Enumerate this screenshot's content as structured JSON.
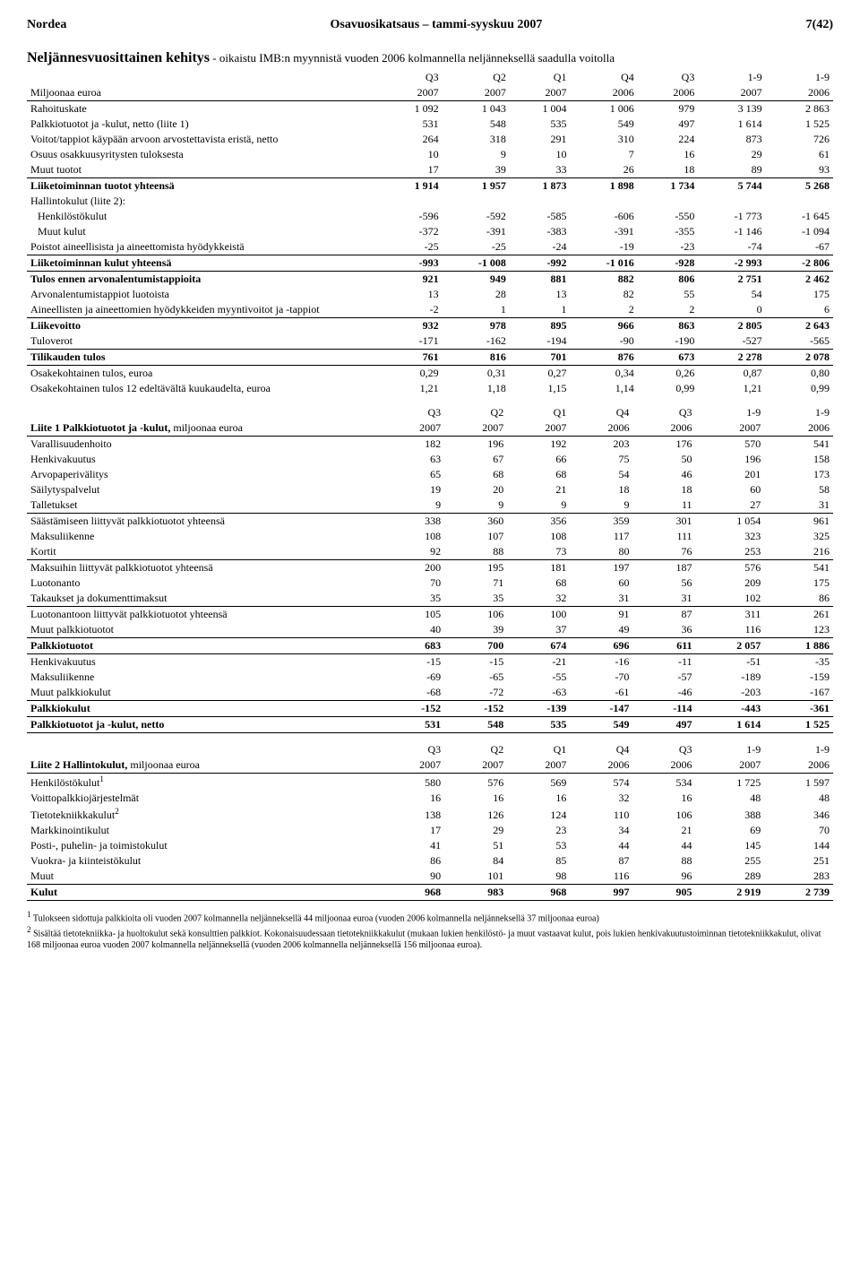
{
  "header": {
    "left": "Nordea",
    "center": "Osavuosikatsaus – tammi-syyskuu 2007",
    "right": "7(42)"
  },
  "title": "Neljännesvuosittainen kehitys",
  "subtitle": " - oikaistu IMB:n myynnistä vuoden 2006 kolmannella neljänneksellä saadulla voitolla",
  "t1": {
    "head1": [
      "",
      "Q3",
      "Q2",
      "Q1",
      "Q4",
      "Q3",
      "1-9",
      "1-9"
    ],
    "head2": [
      "Miljoonaa euroa",
      "2007",
      "2007",
      "2007",
      "2006",
      "2006",
      "2007",
      "2006"
    ],
    "rows": [
      {
        "l": "Rahoituskate",
        "v": [
          "1 092",
          "1 043",
          "1 004",
          "1 006",
          "979",
          "3 139",
          "2 863"
        ]
      },
      {
        "l": "Palkkiotuotot ja -kulut, netto (liite 1)",
        "v": [
          "531",
          "548",
          "535",
          "549",
          "497",
          "1 614",
          "1 525"
        ]
      },
      {
        "l": "Voitot/tappiot käypään arvoon arvostettavista eristä, netto",
        "v": [
          "264",
          "318",
          "291",
          "310",
          "224",
          "873",
          "726"
        ]
      },
      {
        "l": "Osuus osakkuusyritysten tuloksesta",
        "v": [
          "10",
          "9",
          "10",
          "7",
          "16",
          "29",
          "61"
        ]
      },
      {
        "l": "Muut tuotot",
        "v": [
          "17",
          "39",
          "33",
          "26",
          "18",
          "89",
          "93"
        ]
      },
      {
        "l": "Liiketoiminnan tuotot yhteensä",
        "v": [
          "1 914",
          "1 957",
          "1 873",
          "1 898",
          "1 734",
          "5 744",
          "5 268"
        ],
        "bold": true,
        "ruleTop": true
      },
      {
        "l": "Hallintokulut (liite 2):",
        "v": [
          "",
          "",
          "",
          "",
          "",
          "",
          ""
        ]
      },
      {
        "l": "Henkilöstökulut",
        "v": [
          "-596",
          "-592",
          "-585",
          "-606",
          "-550",
          "-1 773",
          "-1 645"
        ],
        "indent": true
      },
      {
        "l": "Muut kulut",
        "v": [
          "-372",
          "-391",
          "-383",
          "-391",
          "-355",
          "-1 146",
          "-1 094"
        ],
        "indent": true
      },
      {
        "l": "Poistot aineellisista ja aineettomista hyödykkeistä",
        "v": [
          "-25",
          "-25",
          "-24",
          "-19",
          "-23",
          "-74",
          "-67"
        ]
      },
      {
        "l": "Liiketoiminnan kulut yhteensä",
        "v": [
          "-993",
          "-1 008",
          "-992",
          "-1 016",
          "-928",
          "-2 993",
          "-2 806"
        ],
        "bold": true,
        "ruleTop": true
      },
      {
        "l": "Tulos ennen arvonalentumistappioita",
        "v": [
          "921",
          "949",
          "881",
          "882",
          "806",
          "2 751",
          "2 462"
        ],
        "bold": true,
        "ruleTop": true
      },
      {
        "l": "Arvonalentumistappiot luotoista",
        "v": [
          "13",
          "28",
          "13",
          "82",
          "55",
          "54",
          "175"
        ]
      },
      {
        "l": "Aineellisten ja aineettomien hyödykkeiden myyntivoitot ja -tappiot",
        "v": [
          "-2",
          "1",
          "1",
          "2",
          "2",
          "0",
          "6"
        ]
      },
      {
        "l": "Liikevoitto",
        "v": [
          "932",
          "978",
          "895",
          "966",
          "863",
          "2 805",
          "2 643"
        ],
        "bold": true,
        "ruleTop": true
      },
      {
        "l": "Tuloverot",
        "v": [
          "-171",
          "-162",
          "-194",
          "-90",
          "-190",
          "-527",
          "-565"
        ]
      },
      {
        "l": "Tilikauden tulos",
        "v": [
          "761",
          "816",
          "701",
          "876",
          "673",
          "2 278",
          "2 078"
        ],
        "bold": true,
        "ruleTop": true,
        "ruleBottom": true
      },
      {
        "l": "Osakekohtainen tulos, euroa",
        "v": [
          "0,29",
          "0,31",
          "0,27",
          "0,34",
          "0,26",
          "0,87",
          "0,80"
        ]
      },
      {
        "l": "Osakekohtainen tulos 12 edeltävältä kuukaudelta, euroa",
        "v": [
          "1,21",
          "1,18",
          "1,15",
          "1,14",
          "0,99",
          "1,21",
          "0,99"
        ]
      }
    ]
  },
  "t2": {
    "head1": [
      "",
      "Q3",
      "Q2",
      "Q1",
      "Q4",
      "Q3",
      "1-9",
      "1-9"
    ],
    "head2_label": "Liite 1 Palkkiotuotot ja -kulut,",
    "head2_unit": " miljoonaa euroa",
    "head2_years": [
      "2007",
      "2007",
      "2007",
      "2006",
      "2006",
      "2007",
      "2006"
    ],
    "rows": [
      {
        "l": "Varallisuudenhoito",
        "v": [
          "182",
          "196",
          "192",
          "203",
          "176",
          "570",
          "541"
        ]
      },
      {
        "l": "Henkivakuutus",
        "v": [
          "63",
          "67",
          "66",
          "75",
          "50",
          "196",
          "158"
        ]
      },
      {
        "l": "Arvopaperivälitys",
        "v": [
          "65",
          "68",
          "68",
          "54",
          "46",
          "201",
          "173"
        ]
      },
      {
        "l": "Säilytyspalvelut",
        "v": [
          "19",
          "20",
          "21",
          "18",
          "18",
          "60",
          "58"
        ]
      },
      {
        "l": "Talletukset",
        "v": [
          "9",
          "9",
          "9",
          "9",
          "11",
          "27",
          "31"
        ]
      },
      {
        "l": "Säästämiseen liittyvät palkkiotuotot yhteensä",
        "v": [
          "338",
          "360",
          "356",
          "359",
          "301",
          "1 054",
          "961"
        ],
        "ruleTop": true
      },
      {
        "l": "Maksuliikenne",
        "v": [
          "108",
          "107",
          "108",
          "117",
          "111",
          "323",
          "325"
        ]
      },
      {
        "l": "Kortit",
        "v": [
          "92",
          "88",
          "73",
          "80",
          "76",
          "253",
          "216"
        ]
      },
      {
        "l": "Maksuihin liittyvät palkkiotuotot yhteensä",
        "v": [
          "200",
          "195",
          "181",
          "197",
          "187",
          "576",
          "541"
        ],
        "ruleTop": true
      },
      {
        "l": "Luotonanto",
        "v": [
          "70",
          "71",
          "68",
          "60",
          "56",
          "209",
          "175"
        ]
      },
      {
        "l": "Takaukset ja dokumenttimaksut",
        "v": [
          "35",
          "35",
          "32",
          "31",
          "31",
          "102",
          "86"
        ]
      },
      {
        "l": "Luotonantoon liittyvät palkkiotuotot yhteensä",
        "v": [
          "105",
          "106",
          "100",
          "91",
          "87",
          "311",
          "261"
        ],
        "ruleTop": true
      },
      {
        "l": "Muut palkkiotuotot",
        "v": [
          "40",
          "39",
          "37",
          "49",
          "36",
          "116",
          "123"
        ]
      },
      {
        "l": "Palkkiotuotot",
        "v": [
          "683",
          "700",
          "674",
          "696",
          "611",
          "2 057",
          "1 886"
        ],
        "bold": true,
        "ruleTop": true,
        "ruleBottom": true
      },
      {
        "l": "Henkivakuutus",
        "v": [
          "-15",
          "-15",
          "-21",
          "-16",
          "-11",
          "-51",
          "-35"
        ]
      },
      {
        "l": "Maksuliikenne",
        "v": [
          "-69",
          "-65",
          "-55",
          "-70",
          "-57",
          "-189",
          "-159"
        ]
      },
      {
        "l": "Muut palkkiokulut",
        "v": [
          "-68",
          "-72",
          "-63",
          "-61",
          "-46",
          "-203",
          "-167"
        ]
      },
      {
        "l": "Palkkiokulut",
        "v": [
          "-152",
          "-152",
          "-139",
          "-147",
          "-114",
          "-443",
          "-361"
        ],
        "bold": true,
        "ruleTop": true
      },
      {
        "l": "Palkkiotuotot ja -kulut, netto",
        "v": [
          "531",
          "548",
          "535",
          "549",
          "497",
          "1 614",
          "1 525"
        ],
        "bold": true,
        "ruleTop": true,
        "ruleBottom": true
      }
    ]
  },
  "t3": {
    "head1": [
      "",
      "Q3",
      "Q2",
      "Q1",
      "Q4",
      "Q3",
      "1-9",
      "1-9"
    ],
    "head2_label": "Liite 2 Hallintokulut,",
    "head2_unit": " miljoonaa euroa",
    "head2_years": [
      "2007",
      "2007",
      "2007",
      "2006",
      "2006",
      "2007",
      "2006"
    ],
    "rows": [
      {
        "l": "Henkilöstökulut",
        "sup": "1",
        "v": [
          "580",
          "576",
          "569",
          "574",
          "534",
          "1 725",
          "1 597"
        ]
      },
      {
        "l": "Voittopalkkiojärjestelmät",
        "v": [
          "16",
          "16",
          "16",
          "32",
          "16",
          "48",
          "48"
        ]
      },
      {
        "l": "Tietotekniikkakulut",
        "sup": "2",
        "v": [
          "138",
          "126",
          "124",
          "110",
          "106",
          "388",
          "346"
        ]
      },
      {
        "l": "Markkinointikulut",
        "v": [
          "17",
          "29",
          "23",
          "34",
          "21",
          "69",
          "70"
        ]
      },
      {
        "l": "Posti-, puhelin- ja toimistokulut",
        "v": [
          "41",
          "51",
          "53",
          "44",
          "44",
          "145",
          "144"
        ]
      },
      {
        "l": "Vuokra- ja kiinteistökulut",
        "v": [
          "86",
          "84",
          "85",
          "87",
          "88",
          "255",
          "251"
        ]
      },
      {
        "l": "Muut",
        "v": [
          "90",
          "101",
          "98",
          "116",
          "96",
          "289",
          "283"
        ]
      },
      {
        "l": "Kulut",
        "v": [
          "968",
          "983",
          "968",
          "997",
          "905",
          "2 919",
          "2 739"
        ],
        "bold": true,
        "ruleTop": true,
        "ruleBottom": true
      }
    ]
  },
  "footnotes": [
    {
      "n": "1",
      "t": "Tulokseen sidottuja palkkioita oli vuoden 2007 kolmannella neljänneksellä 44 miljoonaa euroa (vuoden 2006 kolmannella neljänneksellä 37 miljoonaa euroa)"
    },
    {
      "n": "2",
      "t": "Sisältää tietotekniikka- ja huoltokulut sekä konsulttien palkkiot. Kokonaisuudessaan tietotekniikkakulut (mukaan lukien henkilöstö- ja muut vastaavat kulut, pois lukien henkivakuutustoiminnan tietotekniikkakulut, olivat 168 miljoonaa euroa vuoden 2007 kolmannella neljänneksellä (vuoden 2006 kolmannella neljänneksellä 156 miljoonaa euroa)."
    }
  ]
}
